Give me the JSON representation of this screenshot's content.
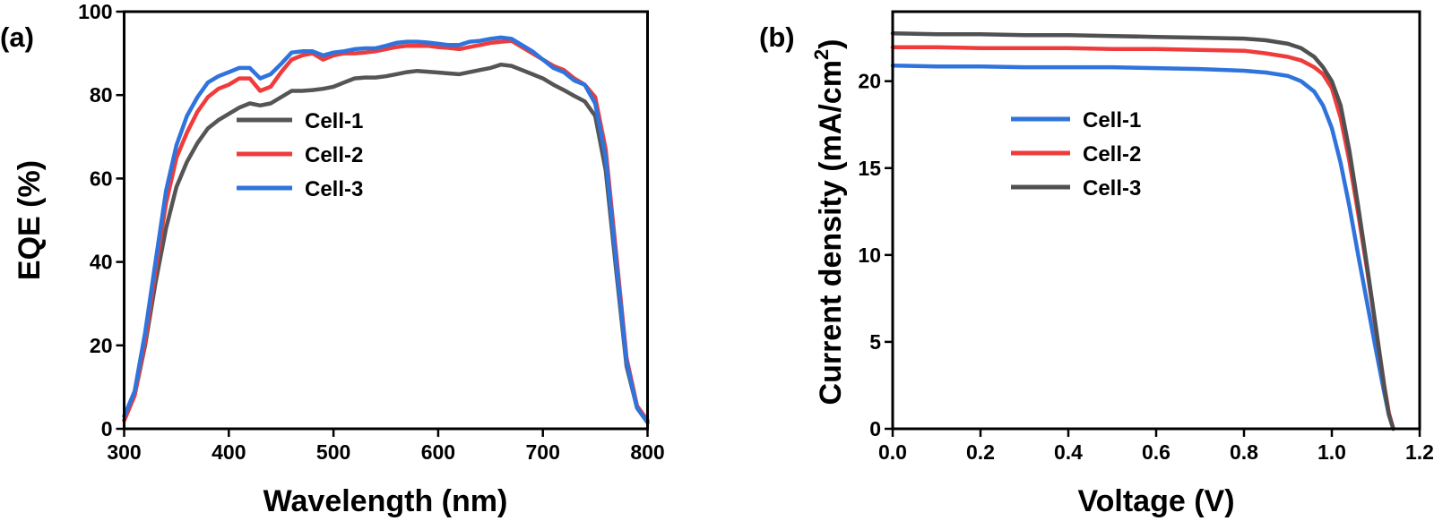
{
  "colors": {
    "cell1_a": "#555555",
    "cell2": "#ef3b3b",
    "cell3": "#2f73dd",
    "cell1_b": "#2f73dd",
    "cell3_b": "#505050"
  },
  "chart_data": [
    {
      "panel_label": "(a)",
      "type": "line",
      "xlabel": "Wavelength (nm)",
      "ylabel": "EQE (%)",
      "xlim": [
        300,
        800
      ],
      "ylim": [
        0,
        100
      ],
      "xticks": [
        "300",
        "400",
        "500",
        "600",
        "700",
        "800"
      ],
      "yticks": [
        "0",
        "20",
        "40",
        "60",
        "80",
        "100"
      ],
      "legend_position": "center",
      "x": [
        300,
        310,
        320,
        330,
        340,
        350,
        360,
        370,
        380,
        390,
        400,
        410,
        420,
        430,
        440,
        450,
        460,
        470,
        480,
        490,
        500,
        510,
        520,
        530,
        540,
        550,
        560,
        570,
        580,
        590,
        600,
        610,
        620,
        630,
        640,
        650,
        660,
        670,
        680,
        690,
        700,
        710,
        720,
        730,
        740,
        750,
        760,
        770,
        780,
        790,
        800
      ],
      "series": [
        {
          "name": "Cell-1",
          "color": "#555555",
          "values": [
            2,
            8,
            20,
            35,
            48,
            58,
            64,
            68.5,
            72,
            74,
            75.5,
            77,
            78,
            77.5,
            78,
            79.5,
            81,
            81,
            81.2,
            81.5,
            82,
            83,
            84,
            84.2,
            84.2,
            84.5,
            85,
            85.5,
            85.8,
            85.6,
            85.4,
            85.2,
            85,
            85.5,
            86,
            86.5,
            87.3,
            87,
            86,
            85,
            84,
            82.5,
            81.2,
            79.8,
            78.5,
            75,
            62,
            38,
            15,
            5,
            1.5
          ]
        },
        {
          "name": "Cell-2",
          "color": "#ef3b3b",
          "values": [
            2,
            8,
            21,
            38,
            54,
            65,
            71,
            76,
            79.5,
            81.5,
            82.5,
            84,
            84,
            81,
            82,
            85.5,
            88.5,
            89.5,
            90,
            88.5,
            89.5,
            90,
            90,
            90.2,
            90.5,
            91,
            91.5,
            91.8,
            91.8,
            91.8,
            91.5,
            91.3,
            91,
            91.5,
            92,
            92.5,
            92.8,
            93,
            91.5,
            90,
            88.5,
            87,
            86,
            84,
            82.5,
            79.5,
            67,
            42,
            17,
            5.5,
            2
          ]
        },
        {
          "name": "Cell-3",
          "color": "#2f73dd",
          "values": [
            3,
            9,
            23,
            40,
            57,
            68,
            75,
            79.5,
            83,
            84.5,
            85.5,
            86.5,
            86.5,
            84,
            85,
            87.5,
            90.2,
            90.5,
            90.5,
            89.5,
            90.2,
            90.5,
            91,
            91.2,
            91.2,
            91.8,
            92.5,
            92.8,
            92.8,
            92.6,
            92.3,
            92,
            92,
            92.8,
            93,
            93.5,
            93.8,
            93.5,
            92,
            90.5,
            88.5,
            86.5,
            85.5,
            83.5,
            82.5,
            78,
            65,
            40,
            16,
            5,
            1.5
          ]
        }
      ]
    },
    {
      "panel_label": "(b)",
      "type": "line",
      "xlabel": "Voltage (V)",
      "ylabel": "Current density (mA/cm",
      "ylabel_sup": "2",
      "ylabel_end": ")",
      "xlim": [
        0,
        1.2
      ],
      "ylim": [
        0,
        24
      ],
      "xticks": [
        "0.0",
        "0.2",
        "0.4",
        "0.6",
        "0.8",
        "1.0",
        "1.2"
      ],
      "yticks": [
        "0",
        "5",
        "10",
        "15",
        "20"
      ],
      "legend_position": "center-left",
      "x": [
        0,
        0.1,
        0.2,
        0.3,
        0.4,
        0.5,
        0.6,
        0.7,
        0.8,
        0.85,
        0.9,
        0.93,
        0.96,
        0.98,
        1.0,
        1.02,
        1.04,
        1.06,
        1.08,
        1.1,
        1.12,
        1.13,
        1.14
      ],
      "series": [
        {
          "name": "Cell-1",
          "color": "#2f73dd",
          "values": [
            20.9,
            20.85,
            20.85,
            20.8,
            20.8,
            20.8,
            20.75,
            20.7,
            20.6,
            20.5,
            20.3,
            20,
            19.4,
            18.6,
            17.3,
            15.3,
            12.8,
            10,
            7.3,
            4.6,
            2,
            0.8,
            0
          ]
        },
        {
          "name": "Cell-2",
          "color": "#ef3b3b",
          "values": [
            21.95,
            21.95,
            21.9,
            21.9,
            21.9,
            21.85,
            21.85,
            21.8,
            21.75,
            21.6,
            21.4,
            21.2,
            20.8,
            20.4,
            19.6,
            17.9,
            15.4,
            12.4,
            9.2,
            5.8,
            2.4,
            0.9,
            0
          ]
        },
        {
          "name": "Cell-3",
          "color": "#505050",
          "values": [
            22.75,
            22.7,
            22.7,
            22.65,
            22.65,
            22.6,
            22.55,
            22.5,
            22.45,
            22.35,
            22.15,
            21.9,
            21.4,
            20.8,
            20,
            18.6,
            16,
            12.8,
            9.4,
            5.9,
            2.3,
            0.8,
            0
          ]
        }
      ]
    }
  ]
}
